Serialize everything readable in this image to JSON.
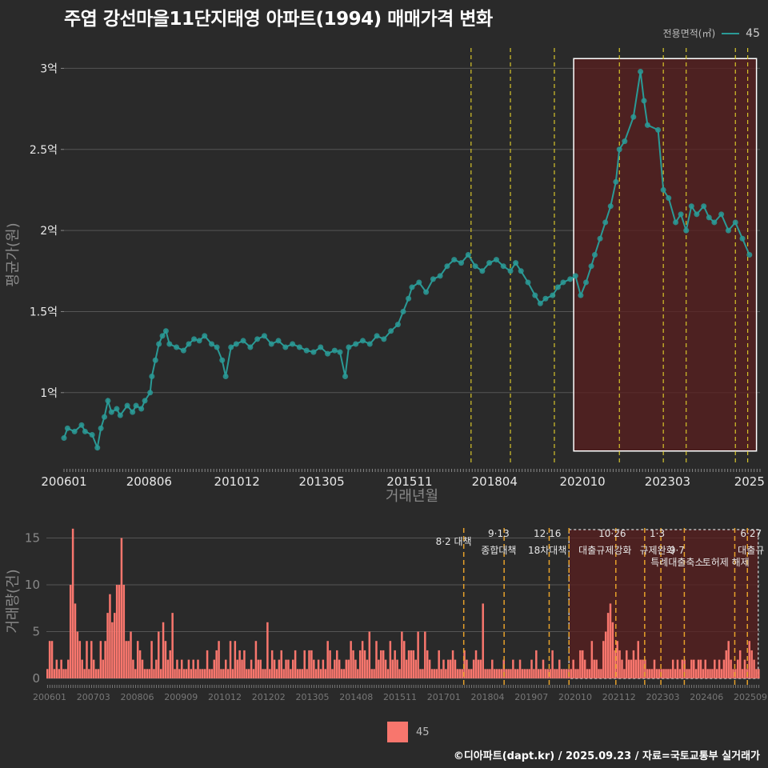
{
  "title": "주엽 강선마을11단지태영 아파트(1994) 매매가격 변화",
  "legend": {
    "title": "전용면적(㎡)",
    "label": "45"
  },
  "footer": "©디아파트(dapt.kr) / 2025.09.23 / 자료=국토교통부 실거래가",
  "colors": {
    "background": "#2a2a2a",
    "line": "#2a9a96",
    "bar": "#f8766d",
    "policy": "#d7c52a",
    "highlight": "#5a1f1f"
  },
  "chart_data": [
    {
      "type": "line",
      "name": "price",
      "xlabel": "거래년월",
      "ylabel": "평균가(원)",
      "xlim": [
        2006.0,
        2025.8
      ],
      "ylim": [
        0.55,
        3.15
      ],
      "y_unit": "억",
      "yticks": [
        1,
        1.5,
        2,
        2.5,
        3
      ],
      "ytick_labels": [
        "1억",
        "1.5억",
        "2억",
        "2.5억",
        "3억"
      ],
      "xtick_labels": [
        "200601",
        "200806",
        "201012",
        "201305",
        "201511",
        "201804",
        "202010",
        "202303",
        "2025"
      ],
      "xticks": [
        2006.0,
        2008.42,
        2010.92,
        2013.33,
        2015.83,
        2018.25,
        2020.75,
        2023.17,
        2025.5
      ],
      "policy_lines": [
        2017.58,
        2018.7,
        2019.95,
        2021.8,
        2023.05,
        2023.7,
        2025.1,
        2025.45
      ],
      "highlight": {
        "x": [
          2020.5,
          2025.7
        ],
        "y": [
          0.64,
          3.06
        ]
      },
      "series": [
        {
          "name": "45",
          "points": [
            [
              2006.0,
              0.72
            ],
            [
              2006.1,
              0.78
            ],
            [
              2006.3,
              0.76
            ],
            [
              2006.5,
              0.8
            ],
            [
              2006.6,
              0.76
            ],
            [
              2006.8,
              0.74
            ],
            [
              2006.95,
              0.66
            ],
            [
              2007.05,
              0.78
            ],
            [
              2007.15,
              0.85
            ],
            [
              2007.25,
              0.95
            ],
            [
              2007.35,
              0.88
            ],
            [
              2007.5,
              0.9
            ],
            [
              2007.6,
              0.86
            ],
            [
              2007.8,
              0.92
            ],
            [
              2007.95,
              0.88
            ],
            [
              2008.05,
              0.92
            ],
            [
              2008.2,
              0.9
            ],
            [
              2008.3,
              0.95
            ],
            [
              2008.45,
              1.0
            ],
            [
              2008.5,
              1.1
            ],
            [
              2008.6,
              1.2
            ],
            [
              2008.7,
              1.3
            ],
            [
              2008.8,
              1.35
            ],
            [
              2008.9,
              1.38
            ],
            [
              2009.0,
              1.3
            ],
            [
              2009.2,
              1.28
            ],
            [
              2009.4,
              1.26
            ],
            [
              2009.55,
              1.3
            ],
            [
              2009.7,
              1.33
            ],
            [
              2009.85,
              1.32
            ],
            [
              2010.0,
              1.35
            ],
            [
              2010.2,
              1.3
            ],
            [
              2010.35,
              1.28
            ],
            [
              2010.5,
              1.2
            ],
            [
              2010.6,
              1.1
            ],
            [
              2010.75,
              1.28
            ],
            [
              2010.9,
              1.3
            ],
            [
              2011.1,
              1.32
            ],
            [
              2011.3,
              1.28
            ],
            [
              2011.5,
              1.33
            ],
            [
              2011.7,
              1.35
            ],
            [
              2011.9,
              1.3
            ],
            [
              2012.1,
              1.32
            ],
            [
              2012.3,
              1.28
            ],
            [
              2012.5,
              1.3
            ],
            [
              2012.7,
              1.28
            ],
            [
              2012.9,
              1.26
            ],
            [
              2013.1,
              1.25
            ],
            [
              2013.3,
              1.28
            ],
            [
              2013.5,
              1.24
            ],
            [
              2013.7,
              1.26
            ],
            [
              2013.85,
              1.25
            ],
            [
              2014.0,
              1.1
            ],
            [
              2014.1,
              1.28
            ],
            [
              2014.3,
              1.3
            ],
            [
              2014.5,
              1.32
            ],
            [
              2014.7,
              1.3
            ],
            [
              2014.9,
              1.35
            ],
            [
              2015.1,
              1.33
            ],
            [
              2015.3,
              1.38
            ],
            [
              2015.5,
              1.42
            ],
            [
              2015.65,
              1.5
            ],
            [
              2015.8,
              1.58
            ],
            [
              2015.9,
              1.65
            ],
            [
              2016.1,
              1.68
            ],
            [
              2016.3,
              1.62
            ],
            [
              2016.5,
              1.7
            ],
            [
              2016.7,
              1.72
            ],
            [
              2016.9,
              1.78
            ],
            [
              2017.1,
              1.82
            ],
            [
              2017.3,
              1.8
            ],
            [
              2017.5,
              1.85
            ],
            [
              2017.7,
              1.78
            ],
            [
              2017.9,
              1.75
            ],
            [
              2018.1,
              1.8
            ],
            [
              2018.3,
              1.82
            ],
            [
              2018.5,
              1.78
            ],
            [
              2018.7,
              1.75
            ],
            [
              2018.85,
              1.8
            ],
            [
              2019.0,
              1.75
            ],
            [
              2019.2,
              1.68
            ],
            [
              2019.4,
              1.6
            ],
            [
              2019.55,
              1.55
            ],
            [
              2019.7,
              1.58
            ],
            [
              2019.9,
              1.6
            ],
            [
              2020.05,
              1.65
            ],
            [
              2020.2,
              1.68
            ],
            [
              2020.4,
              1.7
            ],
            [
              2020.55,
              1.72
            ],
            [
              2020.7,
              1.6
            ],
            [
              2020.85,
              1.68
            ],
            [
              2021.0,
              1.78
            ],
            [
              2021.1,
              1.85
            ],
            [
              2021.25,
              1.95
            ],
            [
              2021.4,
              2.05
            ],
            [
              2021.55,
              2.15
            ],
            [
              2021.7,
              2.3
            ],
            [
              2021.8,
              2.5
            ],
            [
              2021.95,
              2.55
            ],
            [
              2022.2,
              2.7
            ],
            [
              2022.4,
              2.98
            ],
            [
              2022.5,
              2.8
            ],
            [
              2022.6,
              2.65
            ],
            [
              2022.9,
              2.62
            ],
            [
              2023.05,
              2.25
            ],
            [
              2023.2,
              2.2
            ],
            [
              2023.4,
              2.05
            ],
            [
              2023.55,
              2.1
            ],
            [
              2023.7,
              2.0
            ],
            [
              2023.85,
              2.15
            ],
            [
              2024.0,
              2.1
            ],
            [
              2024.2,
              2.15
            ],
            [
              2024.35,
              2.08
            ],
            [
              2024.5,
              2.05
            ],
            [
              2024.7,
              2.1
            ],
            [
              2024.9,
              2.0
            ],
            [
              2025.1,
              2.05
            ],
            [
              2025.3,
              1.95
            ],
            [
              2025.5,
              1.85
            ]
          ]
        }
      ]
    },
    {
      "type": "bar",
      "name": "volume",
      "xlabel": "",
      "ylabel": "거래량(건)",
      "ylim": [
        0,
        16.5
      ],
      "yticks": [
        0,
        5,
        10,
        15
      ],
      "xtick_labels": [
        "200601",
        "200703",
        "200806",
        "200909",
        "201012",
        "201202",
        "201305",
        "201408",
        "201511",
        "201701",
        "201804",
        "201907",
        "202010",
        "202112",
        "202303",
        "202406",
        "202509"
      ],
      "policy_lines": [
        2017.58,
        2018.7,
        2019.95,
        2020.5,
        2021.8,
        2022.6,
        2023.05,
        2023.7,
        2025.1,
        2025.45
      ],
      "annotations": [
        {
          "x": 2017.3,
          "row": 1,
          "text": "8·2 대책"
        },
        {
          "x": 2018.55,
          "row": 0,
          "text": "9·13"
        },
        {
          "x": 2018.55,
          "row": 2,
          "text": "종합대책"
        },
        {
          "x": 2019.9,
          "row": 0,
          "text": "12·16"
        },
        {
          "x": 2019.9,
          "row": 2,
          "text": "18차대책"
        },
        {
          "x": 2021.7,
          "row": 0,
          "text": "10·26"
        },
        {
          "x": 2021.5,
          "row": 2,
          "text": "대출규제강화"
        },
        {
          "x": 2022.95,
          "row": 0,
          "text": "1·3"
        },
        {
          "x": 2022.95,
          "row": 2,
          "text": "규제완화"
        },
        {
          "x": 2023.5,
          "row": 2,
          "text": "9·7"
        },
        {
          "x": 2023.5,
          "row": 3,
          "text": "특례대출축소"
        },
        {
          "x": 2024.85,
          "row": 3,
          "text": "토허제 해제"
        },
        {
          "x": 2025.55,
          "row": 0,
          "text": "6·27"
        },
        {
          "x": 2025.55,
          "row": 2,
          "text": "대출규"
        }
      ],
      "categories_start": "200601",
      "values": [
        1,
        4,
        4,
        1,
        2,
        1,
        2,
        1,
        1,
        2,
        10,
        16,
        8,
        5,
        4,
        2,
        1,
        4,
        1,
        4,
        2,
        1,
        1,
        4,
        2,
        4,
        7,
        9,
        6,
        7,
        10,
        10,
        15,
        10,
        4,
        4,
        5,
        2,
        1,
        4,
        3,
        2,
        1,
        1,
        1,
        4,
        1,
        2,
        5,
        1,
        6,
        4,
        2,
        3,
        7,
        1,
        2,
        1,
        2,
        1,
        1,
        2,
        1,
        2,
        1,
        2,
        1,
        1,
        1,
        3,
        1,
        1,
        2,
        3,
        4,
        1,
        1,
        2,
        1,
        4,
        1,
        4,
        2,
        3,
        2,
        3,
        1,
        1,
        2,
        1,
        4,
        2,
        2,
        1,
        1,
        6,
        1,
        3,
        2,
        1,
        2,
        3,
        1,
        2,
        2,
        1,
        2,
        3,
        1,
        1,
        1,
        3,
        1,
        3,
        3,
        2,
        1,
        2,
        1,
        2,
        1,
        4,
        3,
        1,
        2,
        3,
        2,
        1,
        1,
        2,
        2,
        4,
        3,
        2,
        1,
        3,
        4,
        3,
        2,
        5,
        1,
        1,
        4,
        2,
        3,
        3,
        2,
        1,
        4,
        2,
        3,
        2,
        1,
        5,
        4,
        2,
        3,
        3,
        3,
        2,
        5,
        1,
        1,
        5,
        3,
        2,
        1,
        1,
        1,
        3,
        1,
        2,
        1,
        2,
        2,
        3,
        2,
        1,
        1,
        1,
        3,
        2,
        1,
        1,
        2,
        3,
        2,
        2,
        8,
        1,
        1,
        1,
        2,
        1,
        1,
        1,
        1,
        2,
        1,
        1,
        1,
        2,
        1,
        1,
        2,
        1,
        1,
        1,
        1,
        2,
        1,
        3,
        1,
        1,
        2,
        1,
        1,
        1,
        3,
        1,
        1,
        2,
        1,
        1,
        1,
        1,
        1,
        2,
        1,
        1,
        3,
        3,
        2,
        1,
        1,
        4,
        2,
        2,
        1,
        1,
        4,
        5,
        7,
        8,
        6,
        3,
        4,
        3,
        2,
        1,
        3,
        2,
        2,
        3,
        2,
        4,
        2,
        2,
        2,
        1,
        1,
        1,
        2,
        1,
        1,
        1,
        1,
        1,
        1,
        1,
        2,
        1,
        2,
        1,
        2,
        2,
        1,
        1,
        2,
        2,
        1,
        2,
        2,
        1,
        2,
        1,
        1,
        1,
        2,
        1,
        2,
        1,
        2,
        3,
        4,
        2,
        1,
        1,
        2,
        3,
        1,
        2,
        1,
        4,
        3,
        2,
        1,
        1
      ]
    }
  ]
}
